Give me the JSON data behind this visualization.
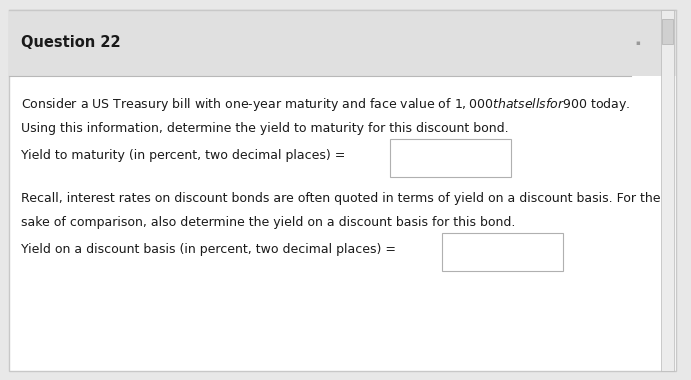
{
  "title": "Question 22",
  "body_text_1a": "Consider a US Treasury bill with one-year maturity and face value of $1,000 that sells for $900 today.",
  "body_text_1b": "Using this information, determine the yield to maturity for this discount bond.",
  "label_1": "Yield to maturity (in percent, two decimal places) =",
  "body_text_2a": "Recall, interest rates on discount bonds are often quoted in terms of yield on a discount basis. For the",
  "body_text_2b": "sake of comparison, also determine the yield on a discount basis for this bond.",
  "label_2": "Yield on a discount basis (in percent, two decimal places) =",
  "outer_bg": "#e8e8e8",
  "card_bg": "#f5f5f5",
  "body_bg": "#ffffff",
  "header_bg": "#e0e0e0",
  "border_color": "#c8c8c8",
  "header_line_color": "#b8b8b8",
  "text_color": "#1a1a1a",
  "input_border_color": "#b0b0b0",
  "input_bg": "#ffffff",
  "title_fontsize": 10.5,
  "body_fontsize": 9.0,
  "scrollbar_color": "#d0d0d0",
  "scrollbar_border": "#b0b0b0"
}
